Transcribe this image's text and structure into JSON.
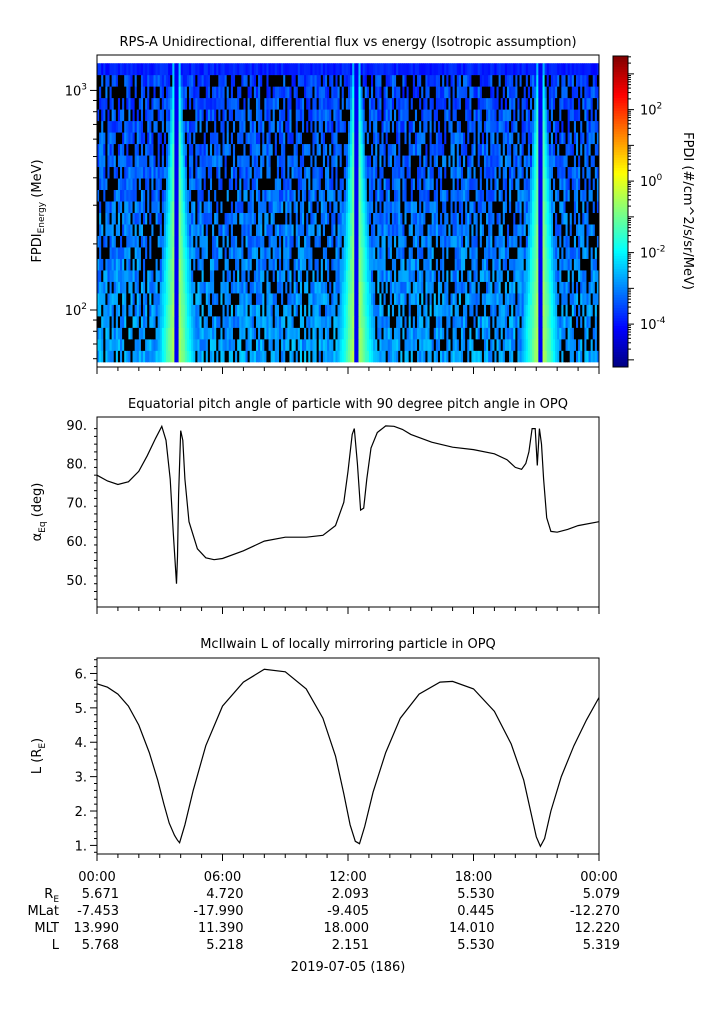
{
  "chart_data": [
    {
      "type": "heatmap",
      "title": "RPS-A Unidirectional, differential flux vs energy (Isotropic assumption)",
      "ylabel_main": "FPDI",
      "ylabel_sub": "Energy",
      "ylabel_unit": "(MeV)",
      "yscale": "log",
      "yticks": [
        {
          "value": 100,
          "base": "10",
          "exp": "2"
        },
        {
          "value": 1000,
          "base": "10",
          "exp": "3"
        }
      ],
      "ylim": [
        55,
        1450
      ],
      "energy_range": [
        58,
        1330
      ],
      "colorbar": {
        "label": "FPDI (#/cm^2/s/sr/MeV)",
        "scale": "log",
        "range": [
          -5.2,
          3.5
        ],
        "ticks": [
          {
            "value": -4,
            "base": "10",
            "exp": "-4"
          },
          {
            "value": -2,
            "base": "10",
            "exp": "-2"
          },
          {
            "value": 0,
            "base": "10",
            "exp": "0"
          },
          {
            "value": 2,
            "base": "10",
            "exp": "2"
          }
        ]
      },
      "perigee_hours": [
        3.8,
        12.4,
        21.2
      ]
    },
    {
      "type": "line",
      "title": "Equatorial pitch angle of particle with 90 degree pitch angle in OPQ",
      "ylabel_main": "α",
      "ylabel_sub": "Eq",
      "ylabel_unit": "(deg)",
      "ylim": [
        43,
        92
      ],
      "yticks": [
        "50.",
        "60.",
        "70.",
        "80.",
        "90."
      ],
      "x_hours": [
        0,
        0.5,
        1,
        1.5,
        2,
        2.4,
        2.8,
        3.1,
        3.3,
        3.5,
        3.65,
        3.8,
        3.85,
        3.9,
        4.0,
        4.1,
        4.2,
        4.4,
        4.8,
        5.2,
        5.6,
        6.0,
        7,
        8,
        9,
        10,
        10.8,
        11.4,
        11.8,
        12.0,
        12.2,
        12.3,
        12.45,
        12.6,
        12.75,
        12.9,
        13.1,
        13.4,
        13.8,
        14.2,
        14.6,
        15,
        16,
        17,
        18,
        19,
        19.6,
        20.0,
        20.3,
        20.5,
        20.65,
        20.8,
        20.95,
        21.05,
        21.15,
        21.25,
        21.35,
        21.5,
        21.7,
        22,
        22.5,
        23,
        24
      ],
      "y_deg": [
        77,
        75.5,
        74.6,
        75.3,
        78,
        82,
        86.5,
        89.6,
        86,
        76,
        62,
        49,
        56,
        72,
        88.5,
        86,
        76,
        65,
        58,
        55.7,
        55.2,
        55.5,
        57.5,
        60,
        61,
        61,
        61.5,
        64,
        70,
        78,
        87.5,
        89,
        80,
        68,
        68.5,
        76,
        84,
        88,
        89.7,
        89.6,
        88.8,
        87.5,
        85.5,
        84.2,
        83.6,
        82.5,
        81,
        79,
        78.5,
        80,
        83,
        89,
        89,
        79.5,
        89,
        85,
        76,
        66,
        62.5,
        62.3,
        63,
        64,
        65
      ]
    },
    {
      "type": "line",
      "title": "McIlwain L of locally mirroring particle in OPQ",
      "ylabel_main": "L (R",
      "ylabel_sub": "E",
      "ylabel_unit": ")",
      "ylim": [
        0.75,
        6.45
      ],
      "yticks": [
        "1.",
        "2.",
        "3.",
        "4.",
        "5.",
        "6."
      ],
      "x_hours": [
        0,
        0.5,
        1,
        1.5,
        2,
        2.5,
        2.9,
        3.2,
        3.45,
        3.7,
        3.75,
        3.85,
        3.95,
        4.2,
        4.6,
        5.2,
        6.0,
        7.0,
        8.0,
        9.0,
        10.0,
        10.8,
        11.4,
        11.8,
        12.1,
        12.35,
        12.55,
        12.8,
        13.2,
        13.8,
        14.5,
        15.4,
        16.4,
        17.0,
        18.0,
        19.0,
        19.8,
        20.4,
        20.8,
        21.0,
        21.2,
        21.4,
        21.7,
        22.2,
        22.8,
        23.4,
        24.0
      ],
      "y_RE": [
        5.7,
        5.6,
        5.4,
        5.05,
        4.5,
        3.7,
        2.9,
        2.2,
        1.65,
        1.3,
        1.25,
        1.15,
        1.08,
        1.6,
        2.6,
        3.9,
        5.05,
        5.75,
        6.12,
        6.05,
        5.55,
        4.7,
        3.6,
        2.5,
        1.6,
        1.12,
        1.05,
        1.55,
        2.55,
        3.7,
        4.7,
        5.4,
        5.75,
        5.77,
        5.55,
        4.9,
        3.95,
        2.9,
        1.8,
        1.25,
        0.97,
        1.2,
        2.0,
        3.0,
        3.9,
        4.65,
        5.3
      ]
    }
  ],
  "time_axis": {
    "range_hours": [
      0,
      24
    ],
    "tick_labels": [
      "00:00",
      "06:00",
      "12:00",
      "18:00",
      "00:00"
    ],
    "date_label": "2019-07-05 (186)"
  },
  "ephemeris": {
    "rows": [
      {
        "label": "R",
        "label_sub": "E",
        "values": [
          "5.671",
          "4.720",
          "2.093",
          "5.530",
          "5.079"
        ]
      },
      {
        "label": "MLat",
        "label_sub": "",
        "values": [
          "-7.453",
          "-17.990",
          "-9.405",
          "0.445",
          "-12.270"
        ]
      },
      {
        "label": "MLT",
        "label_sub": "",
        "values": [
          "13.990",
          "11.390",
          "18.000",
          "14.010",
          "12.220"
        ]
      },
      {
        "label": "L",
        "label_sub": "",
        "values": [
          "5.768",
          "5.218",
          "2.151",
          "5.530",
          "5.319"
        ]
      }
    ]
  }
}
